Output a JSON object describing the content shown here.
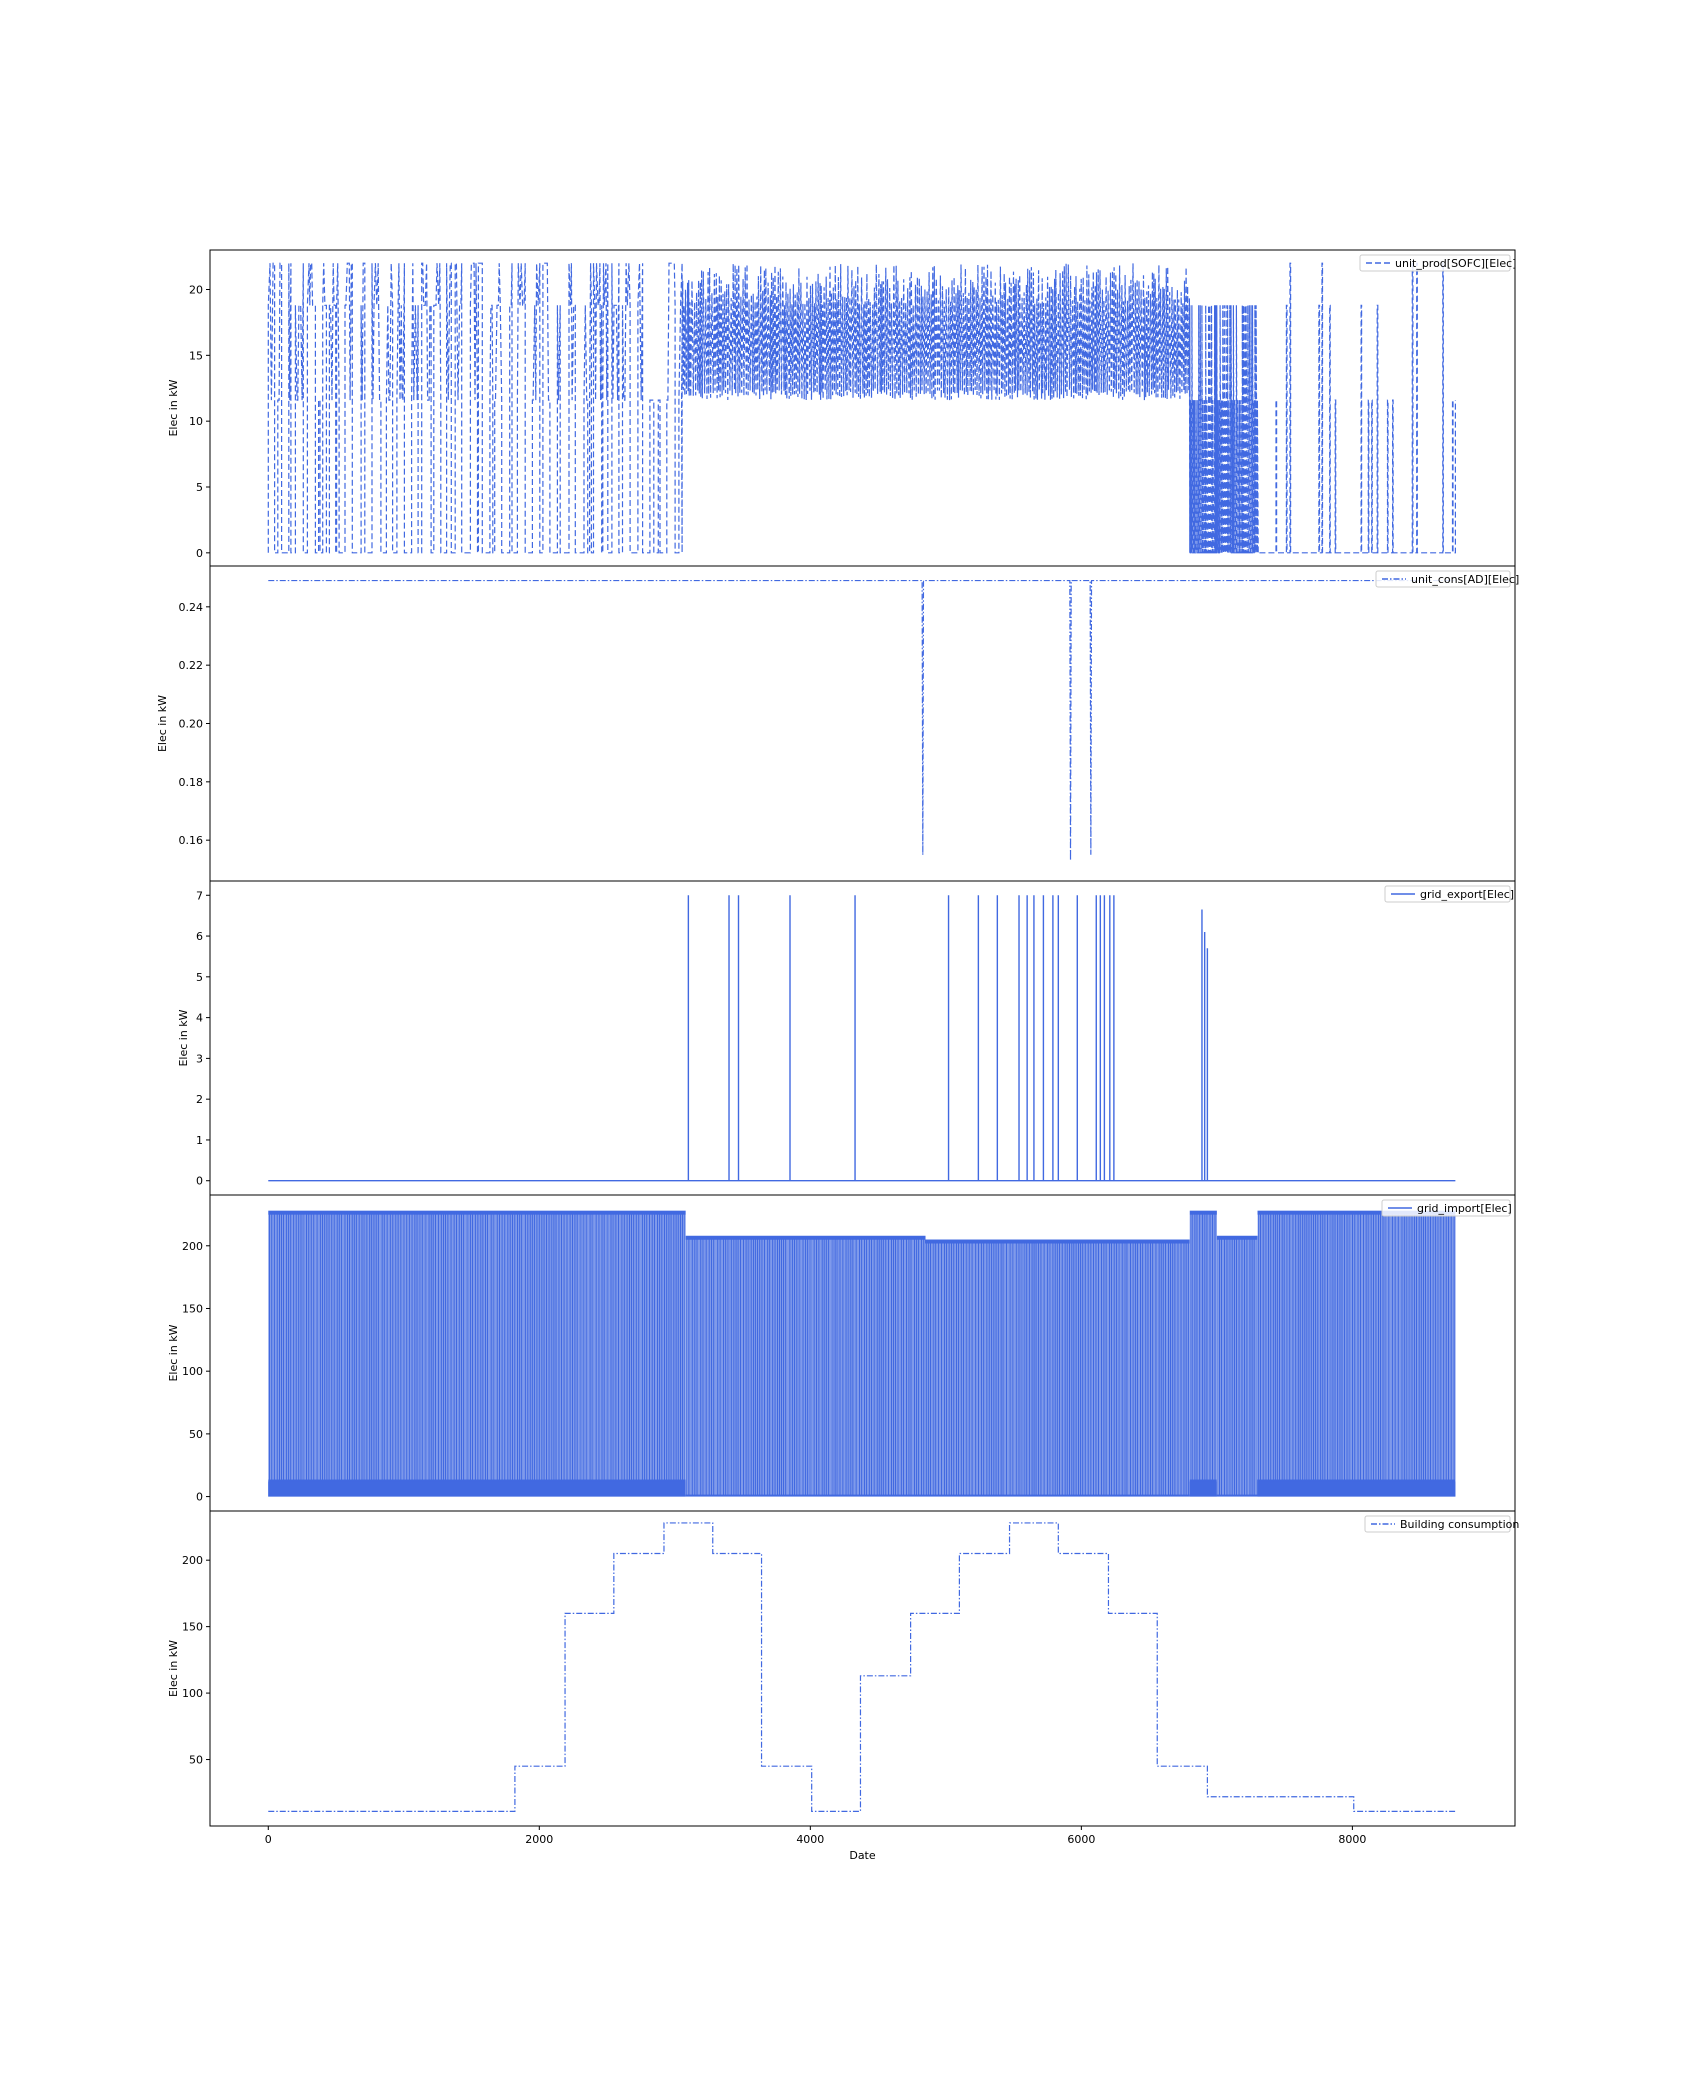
{
  "figure": {
    "xlabel": "Date",
    "x_ticks": [
      0,
      2000,
      4000,
      6000,
      8000
    ],
    "x_tick_labels": [
      "0",
      "2000",
      "4000",
      "6000",
      "8000"
    ],
    "xlim": [
      -430,
      9200
    ],
    "line_color": "#4169e1"
  },
  "chart_data": [
    {
      "type": "line",
      "panel": "unit_prod",
      "ylabel": "Elec in kW",
      "legend": "unit_prod[SOFC][Elec]",
      "legend_placement": "upper right",
      "line_style": "dashed",
      "ylim": [
        -1.0,
        23.0
      ],
      "yticks": [
        0,
        5,
        10,
        15,
        20
      ],
      "ytick_labels": [
        "0",
        "5",
        "10",
        "15",
        "20"
      ],
      "levels": [
        0,
        11.6,
        18.8,
        22.0
      ],
      "segments": [
        {
          "x": [
            0,
            3050
          ],
          "min": 0,
          "max": 22.0,
          "pattern": "intermittent on/off cycling"
        },
        {
          "x": [
            3050,
            6800
          ],
          "min": 11.6,
          "max": 22.0,
          "pattern": "continuous modulation between 11.6 and 22.0"
        },
        {
          "x": [
            6800,
            7300
          ],
          "min": 0,
          "max": 18.8,
          "pattern": "dense on/off cycling"
        },
        {
          "x": [
            7300,
            8760
          ],
          "min": 0,
          "max": 22.0,
          "pattern": "sparse on/off cycling"
        }
      ]
    },
    {
      "type": "line",
      "panel": "unit_cons",
      "ylabel": "Elec in kW",
      "legend": "unit_cons[AD][Elec]",
      "legend_placement": "upper right",
      "line_style": "dashdot",
      "ylim": [
        0.146,
        0.254
      ],
      "yticks": [
        0.16,
        0.18,
        0.2,
        0.22,
        0.24
      ],
      "ytick_labels": [
        "0.16",
        "0.18",
        "0.20",
        "0.22",
        "0.24"
      ],
      "baseline": 0.249,
      "dips": [
        {
          "x": 4830,
          "min": 0.155
        },
        {
          "x": 5920,
          "min": 0.153
        },
        {
          "x": 6070,
          "min": 0.155
        }
      ]
    },
    {
      "type": "line",
      "panel": "grid_export",
      "ylabel": "Elec in kW",
      "legend": "grid_export[Elec]",
      "legend_placement": "upper right",
      "line_style": "solid",
      "ylim": [
        -0.35,
        7.35
      ],
      "yticks": [
        0,
        1,
        2,
        3,
        4,
        5,
        6,
        7
      ],
      "ytick_labels": [
        "0",
        "1",
        "2",
        "3",
        "4",
        "5",
        "6",
        "7"
      ],
      "baseline": 0,
      "spikes": [
        {
          "x": 3100,
          "y": 7.0
        },
        {
          "x": 3400,
          "y": 7.0
        },
        {
          "x": 3470,
          "y": 7.0
        },
        {
          "x": 3850,
          "y": 7.0
        },
        {
          "x": 4330,
          "y": 7.0
        },
        {
          "x": 5020,
          "y": 7.0
        },
        {
          "x": 5240,
          "y": 7.0
        },
        {
          "x": 5380,
          "y": 7.0
        },
        {
          "x": 5540,
          "y": 7.0
        },
        {
          "x": 5600,
          "y": 7.0
        },
        {
          "x": 5650,
          "y": 7.0
        },
        {
          "x": 5720,
          "y": 7.0
        },
        {
          "x": 5790,
          "y": 7.0
        },
        {
          "x": 5830,
          "y": 7.0
        },
        {
          "x": 5970,
          "y": 7.0
        },
        {
          "x": 6110,
          "y": 7.0
        },
        {
          "x": 6140,
          "y": 7.0
        },
        {
          "x": 6170,
          "y": 7.0
        },
        {
          "x": 6210,
          "y": 7.0
        },
        {
          "x": 6240,
          "y": 7.0
        },
        {
          "x": 6890,
          "y": 6.65
        },
        {
          "x": 6910,
          "y": 6.1
        },
        {
          "x": 6930,
          "y": 5.7
        }
      ]
    },
    {
      "type": "area",
      "panel": "grid_import",
      "ylabel": "Elec in kW",
      "legend": "grid_import[Elec]",
      "legend_placement": "upper right",
      "line_style": "solid",
      "ylim": [
        -11.5,
        240.5
      ],
      "yticks": [
        0,
        50,
        100,
        150,
        200
      ],
      "ytick_labels": [
        "0",
        "50",
        "100",
        "150",
        "200"
      ],
      "envelope": [
        {
          "x": [
            0,
            3080
          ],
          "high": 228,
          "low": 12
        },
        {
          "x": [
            3080,
            4850
          ],
          "high": 208,
          "low": 0
        },
        {
          "x": [
            4850,
            6800
          ],
          "high": 205,
          "low": 0
        },
        {
          "x": [
            6800,
            7000
          ],
          "high": 228,
          "low": 12
        },
        {
          "x": [
            7000,
            7300
          ],
          "high": 208,
          "low": 0
        },
        {
          "x": [
            7300,
            8760
          ],
          "high": 228,
          "low": 12
        }
      ]
    },
    {
      "type": "line",
      "panel": "building_consumption",
      "ylabel": "Elec in kW",
      "legend": "Building consumption",
      "legend_placement": "upper right",
      "line_style": "dashdot",
      "ylim": [
        0,
        237
      ],
      "yticks": [
        50,
        100,
        150,
        200
      ],
      "ytick_labels": [
        "50",
        "100",
        "150",
        "200"
      ],
      "steps": [
        {
          "x0": 0,
          "x1": 1820,
          "y": 11
        },
        {
          "x0": 1820,
          "x1": 2190,
          "y": 45
        },
        {
          "x0": 2190,
          "x1": 2550,
          "y": 160
        },
        {
          "x0": 2550,
          "x1": 2920,
          "y": 205
        },
        {
          "x0": 2920,
          "x1": 3280,
          "y": 228
        },
        {
          "x0": 3280,
          "x1": 3640,
          "y": 205
        },
        {
          "x0": 3640,
          "x1": 4010,
          "y": 45
        },
        {
          "x0": 4010,
          "x1": 4370,
          "y": 11
        },
        {
          "x0": 4370,
          "x1": 4740,
          "y": 113
        },
        {
          "x0": 4740,
          "x1": 5100,
          "y": 160
        },
        {
          "x0": 5100,
          "x1": 5470,
          "y": 205
        },
        {
          "x0": 5470,
          "x1": 5830,
          "y": 228
        },
        {
          "x0": 5830,
          "x1": 6200,
          "y": 205
        },
        {
          "x0": 6200,
          "x1": 6560,
          "y": 160
        },
        {
          "x0": 6560,
          "x1": 6930,
          "y": 45
        },
        {
          "x0": 6930,
          "x1": 8010,
          "y": 22
        },
        {
          "x0": 8010,
          "x1": 8760,
          "y": 11
        }
      ]
    }
  ]
}
